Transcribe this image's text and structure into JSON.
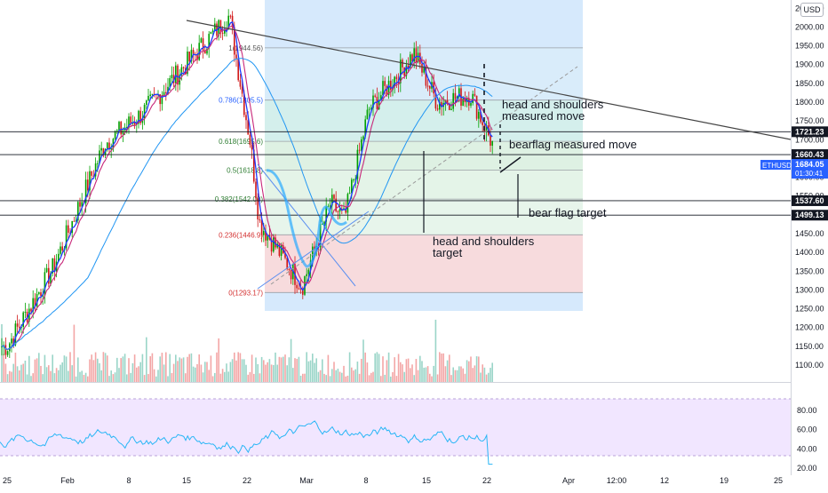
{
  "currency": "USD",
  "symbol_tag": {
    "symbol": "ETHUSD",
    "price": "1684.05",
    "countdown": "01:30:41",
    "color": "#2962ff"
  },
  "colors": {
    "bull": "#089981",
    "bull_bright": "#00a000",
    "bear": "#d01818",
    "ma_fast": "#1c39ff",
    "ma_mid": "#c8287a",
    "ma_slow": "#2196f3",
    "rsi_line": "#29b6f6",
    "rsi_band": "#f1e6ff",
    "volume_up": "#9ad5c8",
    "volume_down": "#f3a6a6"
  },
  "chart_data": {
    "type": "candlestick",
    "price_axis": {
      "ticks": [
        "2050.00",
        "2000.00",
        "1950.00",
        "1900.00",
        "1850.00",
        "1800.00",
        "1750.00",
        "1700.00",
        "1650.00",
        "1600.00",
        "1550.00",
        "1500.00",
        "1450.00",
        "1400.00",
        "1350.00",
        "1300.00",
        "1250.00",
        "1200.00",
        "1150.00",
        "1100.00"
      ],
      "range": [
        1085,
        2070
      ]
    },
    "rsi_axis": {
      "ticks": [
        "80.00",
        "60.00",
        "40.00",
        "20.00"
      ],
      "range": [
        20,
        90
      ],
      "band": [
        30,
        70
      ]
    },
    "time_axis": {
      "labels": [
        "25",
        "Feb",
        "8",
        "15",
        "22",
        "Mar",
        "8",
        "15",
        "22",
        "Apr",
        "12:00",
        "12",
        "19",
        "25"
      ]
    },
    "horizontal_levels": [
      {
        "label": "1721.23",
        "value": 1721.23
      },
      {
        "label": "1660.43",
        "value": 1660.43
      },
      {
        "label": "1537.60",
        "value": 1537.6
      },
      {
        "label": "1499.13",
        "value": 1499.13
      }
    ],
    "fibonacci": [
      {
        "label": "1(1944.56)",
        "value": 1944.56,
        "fill": "#e0e0e0"
      },
      {
        "label": "0.786(1805.5)",
        "value": 1805.5,
        "fill": "#d9ecf9"
      },
      {
        "label": "0.618(1695.6)",
        "value": 1695.6,
        "fill": "#d4f0ea"
      },
      {
        "label": "0.5(1618.8)",
        "value": 1618.8,
        "fill": "#dff2e0"
      },
      {
        "label": "0.382(1542.00)",
        "value": 1542.0,
        "fill": "#e6f5e6"
      },
      {
        "label": "0.236(1446.9)",
        "value": 1446.9,
        "fill": "#e9f6e9"
      },
      {
        "label": "0(1293.17)",
        "value": 1293.17,
        "fill": "#fbd9d9"
      }
    ],
    "annotations": [
      {
        "label": "head and shoulders",
        "line2": "measured move"
      },
      {
        "label": "bearflag measured move"
      },
      {
        "label": "bear flag target"
      },
      {
        "label": "head and shoulders",
        "line2": "target"
      }
    ],
    "key_prices": [
      {
        "date": "Jan 22",
        "price": 1150
      },
      {
        "date": "Jan 28",
        "price": 1360
      },
      {
        "date": "Feb 5",
        "price": 1690
      },
      {
        "date": "Feb 10",
        "price": 1770
      },
      {
        "date": "Feb 19",
        "price": 2030
      },
      {
        "date": "Feb 22",
        "price": 1690
      },
      {
        "date": "Feb 23",
        "price": 1480
      },
      {
        "date": "Feb 28",
        "price": 1310
      },
      {
        "date": "Mar 4",
        "price": 1530
      },
      {
        "date": "Mar 6",
        "price": 1490
      },
      {
        "date": "Mar 9",
        "price": 1780
      },
      {
        "date": "Mar 13",
        "price": 1930
      },
      {
        "date": "Mar 17",
        "price": 1800
      },
      {
        "date": "Mar 21",
        "price": 1820
      },
      {
        "date": "Mar 23",
        "price": 1684.05
      }
    ]
  }
}
